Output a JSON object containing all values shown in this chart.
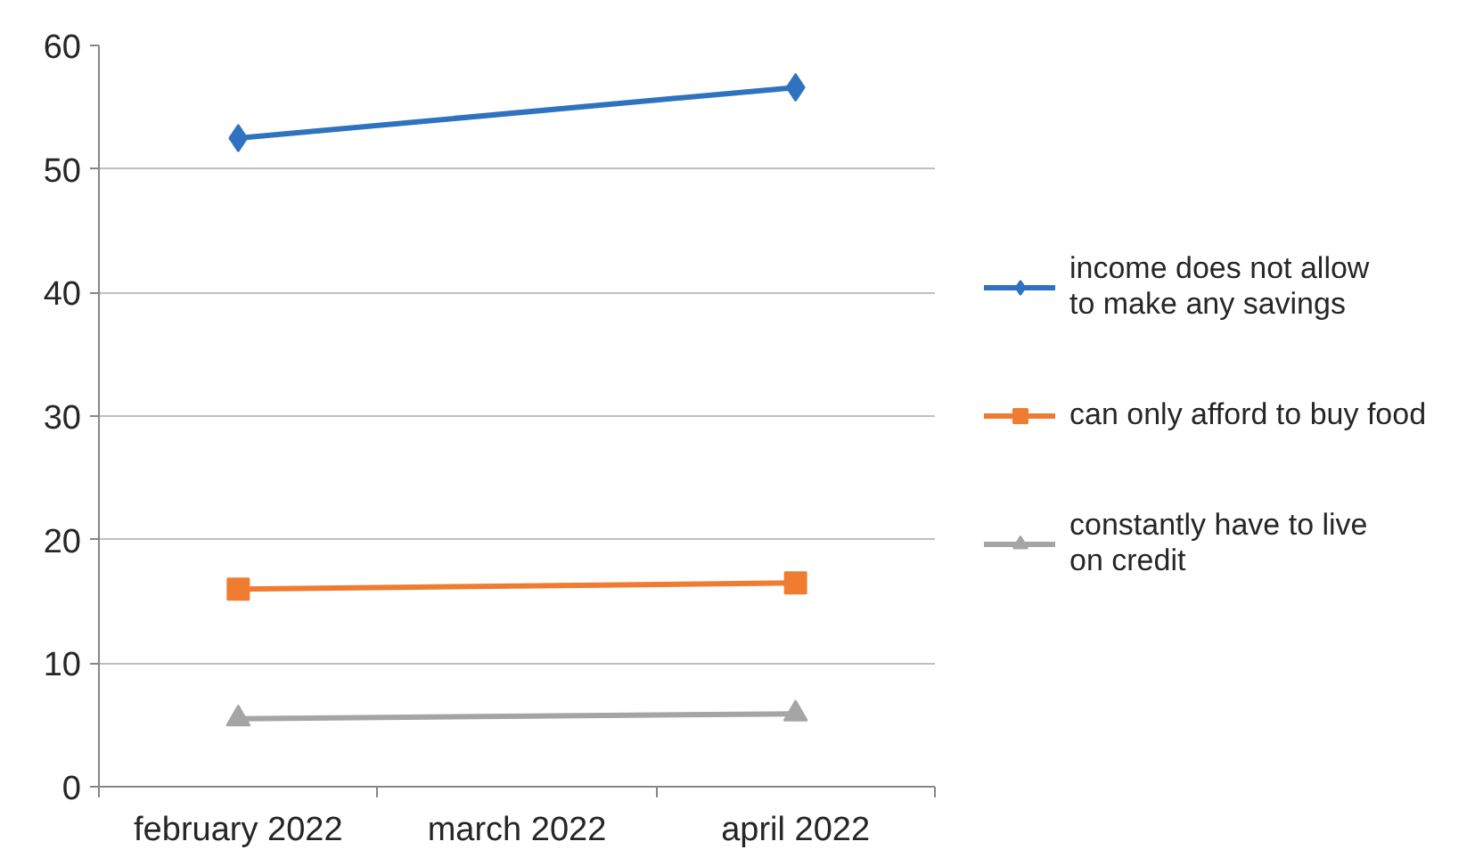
{
  "chart_data": {
    "type": "line",
    "categories": [
      "february 2022",
      "march 2022",
      "april 2022"
    ],
    "series": [
      {
        "name": "income does not allow to make any savings",
        "color": "#2e72c0",
        "marker": "diamond",
        "x": [
          "february 2022",
          "april 2022"
        ],
        "values": [
          52.5,
          56.6
        ]
      },
      {
        "name": "can only afford to buy food",
        "color": "#f07c32",
        "marker": "square",
        "x": [
          "february 2022",
          "april 2022"
        ],
        "values": [
          16.0,
          16.5
        ]
      },
      {
        "name": "constantly have to live on credit",
        "color": "#a5a5a5",
        "marker": "triangle",
        "x": [
          "february 2022",
          "april 2022"
        ],
        "values": [
          5.5,
          5.9
        ]
      }
    ],
    "ylim": [
      0,
      60
    ],
    "yticks": [
      0,
      10,
      20,
      30,
      40,
      50,
      60
    ],
    "grid": "y",
    "legend": "right"
  }
}
